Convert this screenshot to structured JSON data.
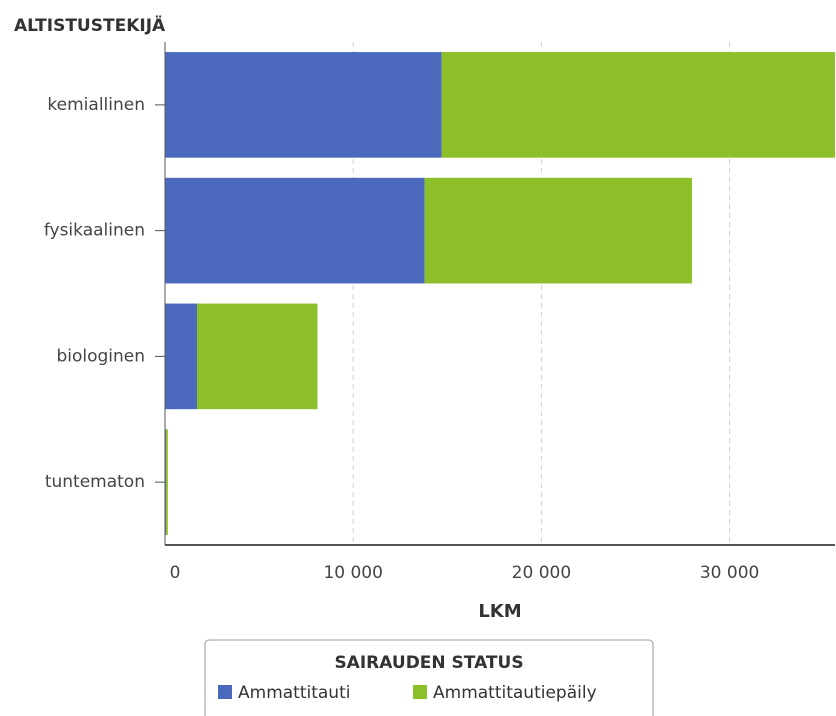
{
  "chart_data": {
    "type": "bar",
    "orientation": "horizontal",
    "stacked": true,
    "title": "ALTISTUSTEKIJÄ",
    "x_label": "LKM",
    "legend_title": "SAIRAUDEN STATUS",
    "categories": [
      "kemiallinen",
      "fysikaalinen",
      "biologinen",
      "tuntematon"
    ],
    "series": [
      {
        "name": "Ammattitauti",
        "color": "#4a69bd",
        "values": [
          14700,
          13800,
          1700,
          50
        ]
      },
      {
        "name": "Ammattitautiepäily",
        "color": "#8dbf2a",
        "values": [
          20900,
          14200,
          6400,
          100
        ]
      }
    ],
    "xlim": [
      0,
      35600
    ],
    "xticks": [
      {
        "value": 0,
        "label": "0"
      },
      {
        "value": 10000,
        "label": "10 000"
      },
      {
        "value": 20000,
        "label": "20 000"
      },
      {
        "value": 30000,
        "label": "30 000"
      }
    ],
    "grid": true
  }
}
